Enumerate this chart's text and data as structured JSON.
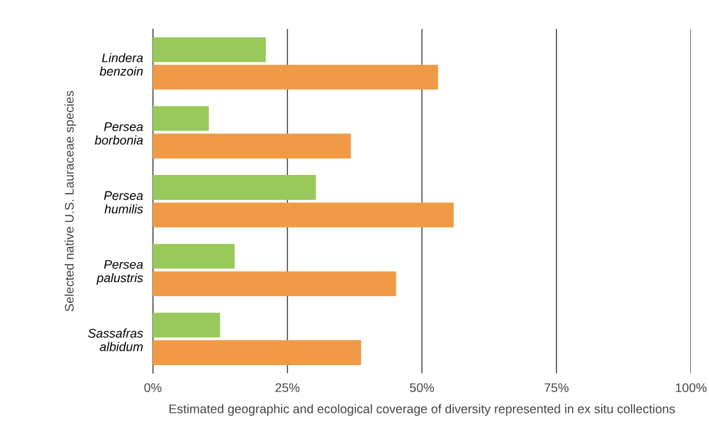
{
  "chart_data": {
    "type": "bar",
    "orientation": "horizontal",
    "xlabel": "Estimated geographic and ecological coverage of diversity represented in ex situ collections",
    "ylabel": "Selected native U.S. Lauraceae species",
    "categories": [
      "Lindera\nbenzoin",
      "Persea\nborbonia",
      "Persea\nhumilis",
      "Persea\npalustris",
      "Sassafras\nalbidum"
    ],
    "series": [
      {
        "color": "#99c95a",
        "values": [
          21,
          10.4,
          30.3,
          15.2,
          12.5
        ]
      },
      {
        "color": "#f09a46",
        "values": [
          53,
          36.8,
          55.9,
          45.2,
          38.7
        ]
      }
    ],
    "xlim": [
      0,
      100
    ],
    "xticks": [
      {
        "value": 0,
        "label": "0%"
      },
      {
        "value": 25,
        "label": "25%"
      },
      {
        "value": 50,
        "label": "50%"
      },
      {
        "value": 75,
        "label": "75%"
      },
      {
        "value": 100,
        "label": "100%"
      }
    ],
    "grid": "x",
    "legend": false
  }
}
